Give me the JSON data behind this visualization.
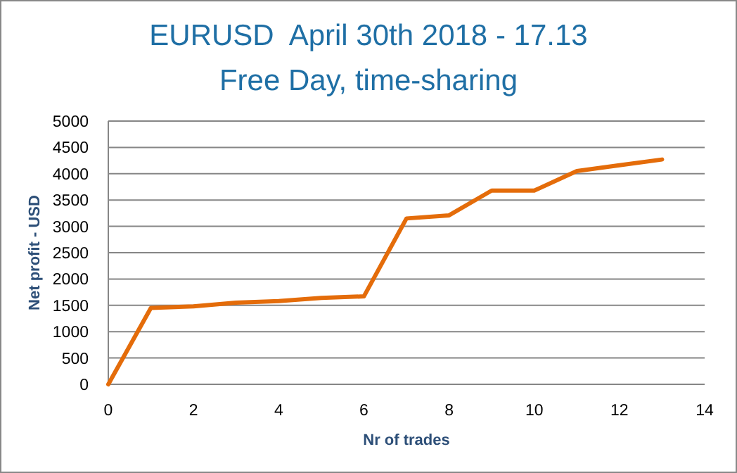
{
  "chart_data": {
    "type": "line",
    "title": "EURUSD  April 30th 2018 - 17.13",
    "subtitle": "Free Day, time-sharing",
    "xlabel": "Nr of trades",
    "ylabel": "Net profit - USD",
    "x": [
      0,
      1,
      2,
      3,
      4,
      5,
      6,
      7,
      8,
      9,
      10,
      11,
      12,
      13
    ],
    "series": [
      {
        "color": "#e46c0a",
        "values": [
          0,
          1450,
          1480,
          1550,
          1580,
          1640,
          1670,
          3150,
          3210,
          3680,
          3680,
          4050,
          4160,
          4270
        ]
      }
    ],
    "xlim": [
      0,
      14
    ],
    "xticks": [
      0,
      2,
      4,
      6,
      8,
      10,
      12,
      14
    ],
    "ylim": [
      0,
      5000
    ],
    "yticks": [
      0,
      500,
      1000,
      1500,
      2000,
      2500,
      3000,
      3500,
      4000,
      4500,
      5000
    ],
    "grid": "y",
    "marker": "none",
    "line_style": "solid"
  }
}
